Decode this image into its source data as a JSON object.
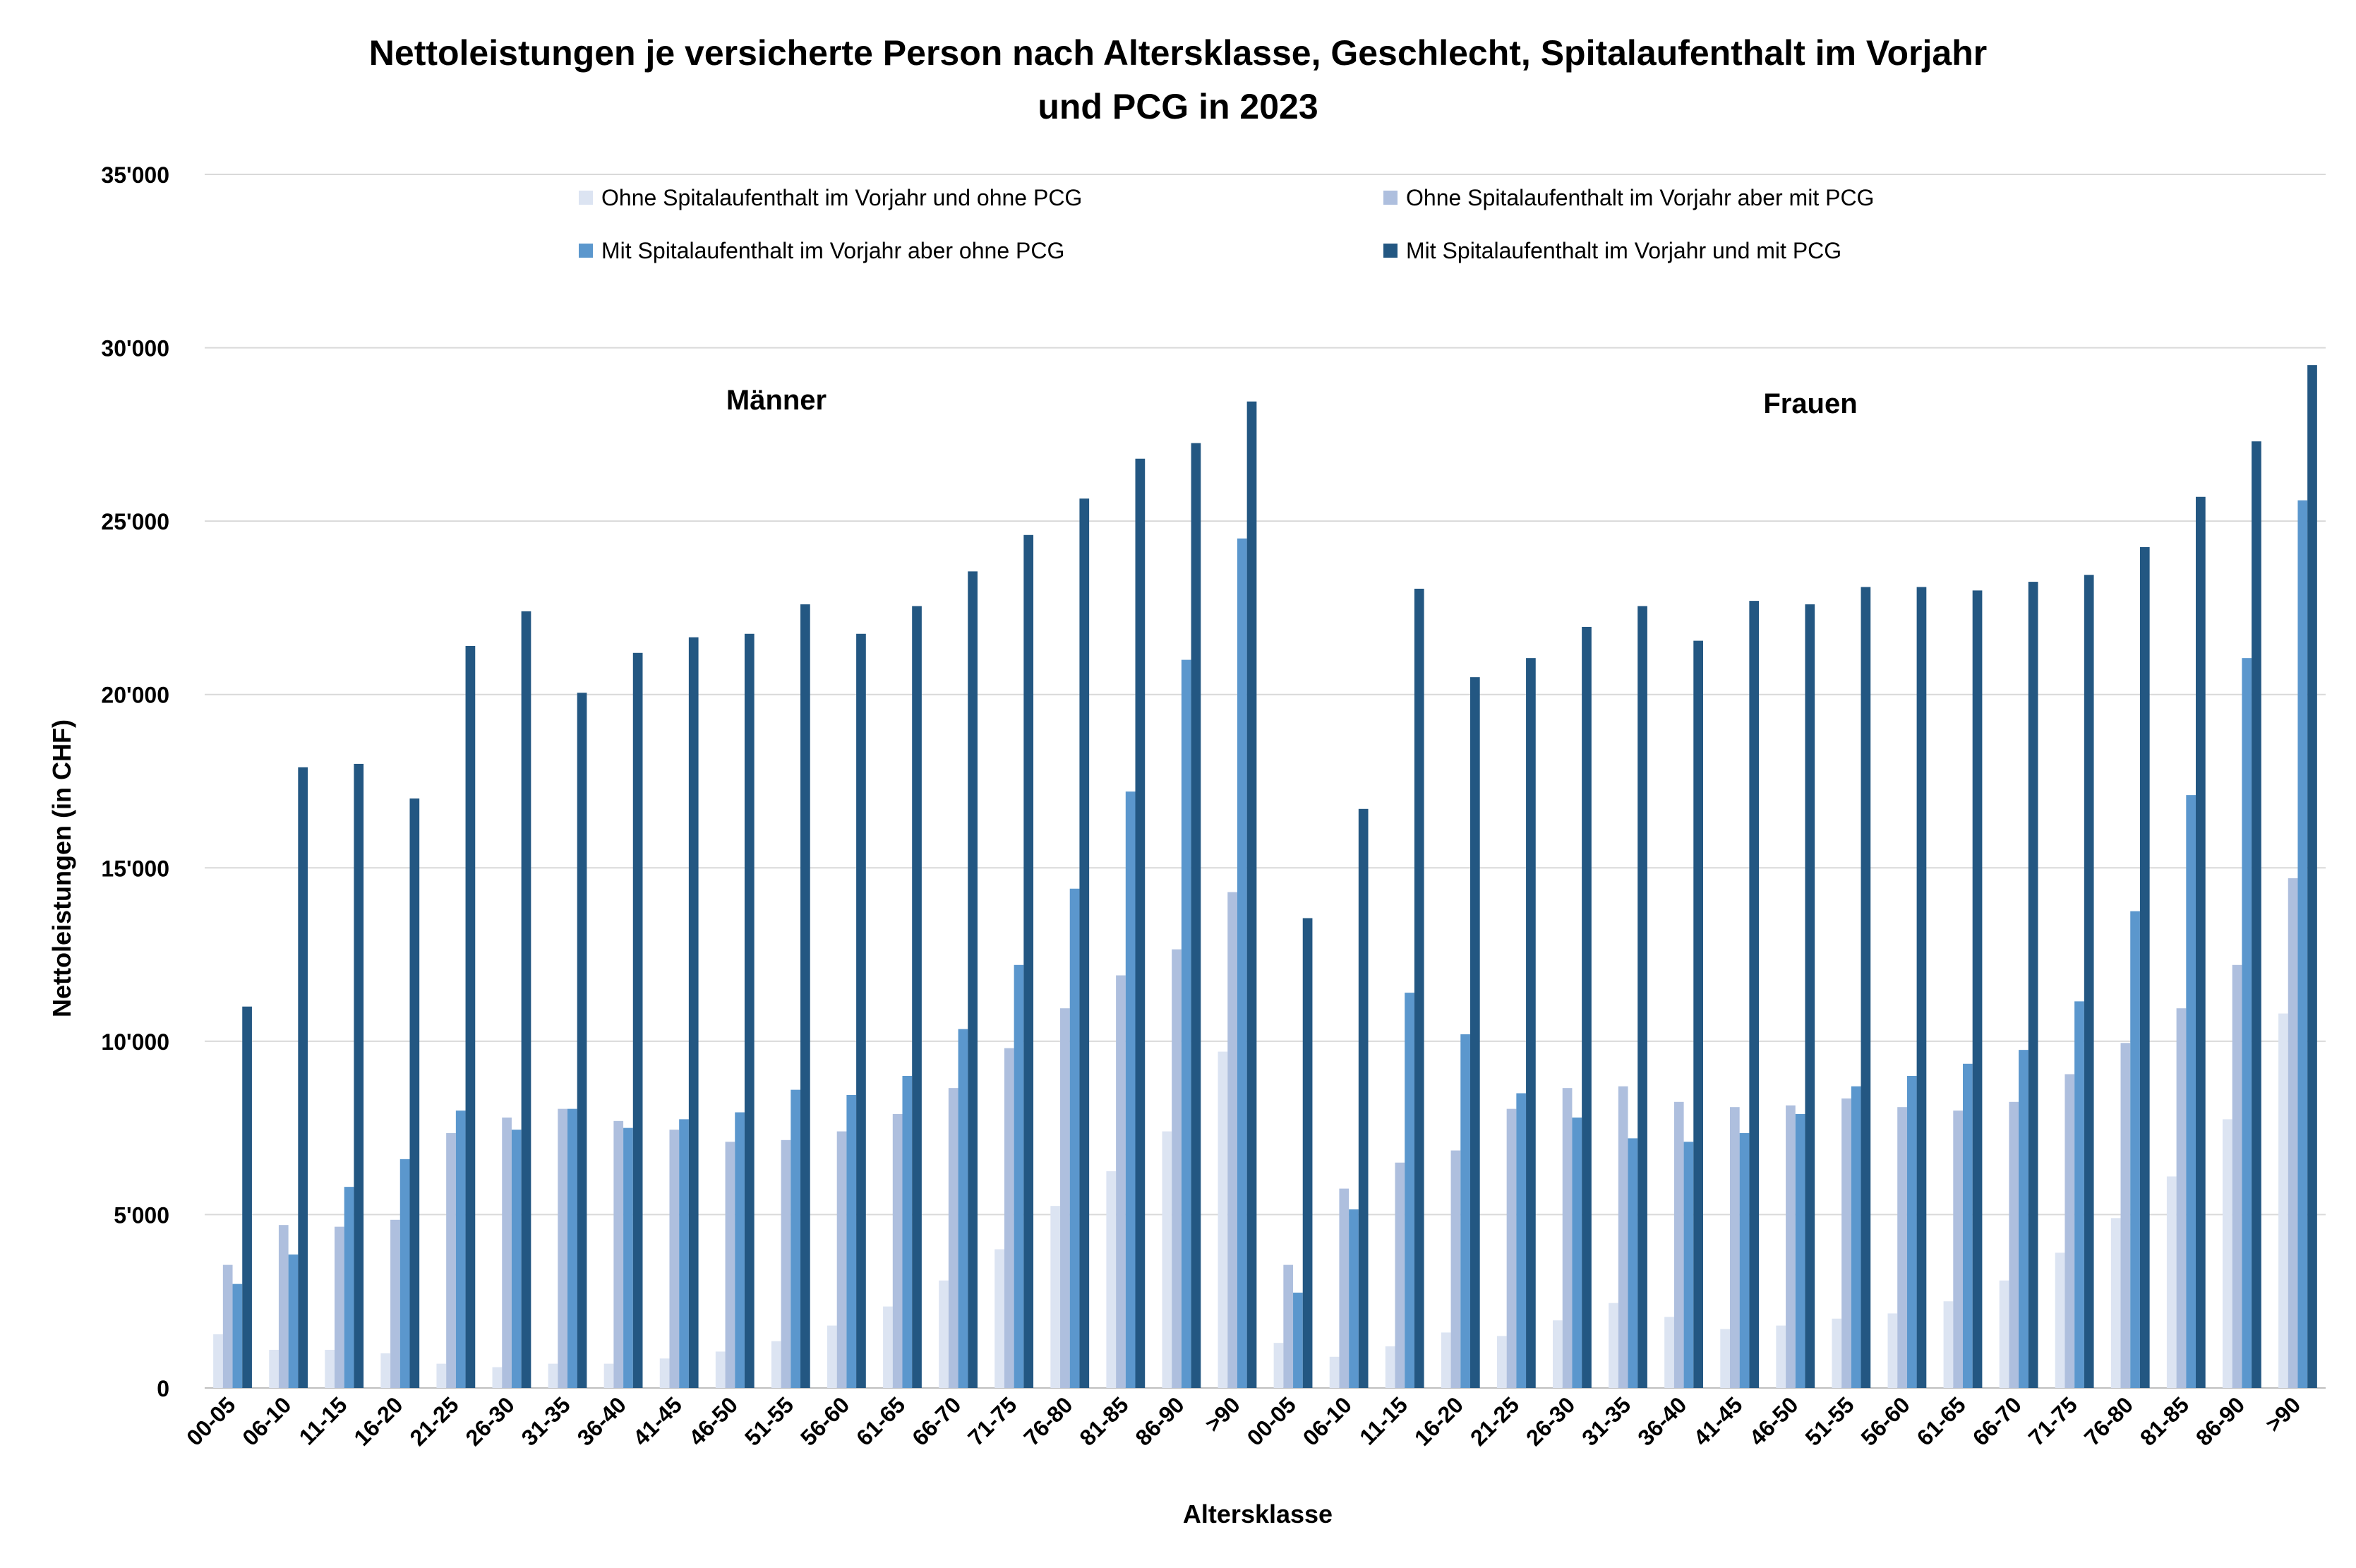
{
  "chart_data": {
    "type": "bar",
    "title": "Nettoleistungen je versicherte Person nach Altersklasse, Geschlecht, Spitalaufenthalt im Vorjahr",
    "title_line2": "und PCG in 2023",
    "xlabel": "Altersklasse",
    "ylabel": "Nettoleistungen (in CHF)",
    "ylim": [
      0,
      35000
    ],
    "yticks": [
      0,
      5000,
      10000,
      15000,
      20000,
      25000,
      30000,
      35000
    ],
    "ytick_labels": [
      "0",
      "5'000",
      "10'000",
      "15'000",
      "20'000",
      "25'000",
      "30'000",
      "35'000"
    ],
    "grid": true,
    "legend_position": "top",
    "group_labels": [
      "Männer",
      "Frauen"
    ],
    "categories": [
      "00-05",
      "06-10",
      "11-15",
      "16-20",
      "21-25",
      "26-30",
      "31-35",
      "36-40",
      "41-45",
      "46-50",
      "51-55",
      "56-60",
      "61-65",
      "66-70",
      "71-75",
      "76-80",
      "81-85",
      "86-90",
      ">90",
      "00-05",
      "06-10",
      "11-15",
      "16-20",
      "21-25",
      "26-30",
      "31-35",
      "36-40",
      "41-45",
      "46-50",
      "51-55",
      "56-60",
      "61-65",
      "66-70",
      "71-75",
      "76-80",
      "81-85",
      "86-90",
      ">90"
    ],
    "series": [
      {
        "name": "Ohne Spitalaufenthalt im Vorjahr und ohne PCG",
        "color": "#dce4f2",
        "values": [
          1550,
          1100,
          1100,
          1000,
          700,
          600,
          700,
          700,
          850,
          1050,
          1350,
          1800,
          2350,
          3100,
          4000,
          5250,
          6250,
          7400,
          9700,
          1300,
          900,
          1200,
          1600,
          1500,
          1950,
          2450,
          2050,
          1700,
          1800,
          2000,
          2150,
          2500,
          3100,
          3900,
          4900,
          6100,
          7750,
          10800
        ]
      },
      {
        "name": "Ohne Spitalaufenthalt im Vorjahr aber mit PCG",
        "color": "#aebfde",
        "values": [
          3550,
          4700,
          4650,
          4850,
          7350,
          7800,
          8050,
          7700,
          7450,
          7100,
          7150,
          7400,
          7900,
          8650,
          9800,
          10950,
          11900,
          12650,
          14300,
          3550,
          5750,
          6500,
          6850,
          8050,
          8650,
          8700,
          8250,
          8100,
          8150,
          8350,
          8100,
          8000,
          8250,
          9050,
          9950,
          10950,
          12200,
          14700
        ]
      },
      {
        "name": "Mit Spitalaufenthalt im Vorjahr aber ohne PCG",
        "color": "#5b97cd",
        "values": [
          3000,
          3850,
          5800,
          6600,
          8000,
          7450,
          8050,
          7500,
          7750,
          7950,
          8600,
          8450,
          9000,
          10350,
          12200,
          14400,
          17200,
          21000,
          24500,
          2750,
          5150,
          11400,
          10200,
          8500,
          7800,
          7200,
          7100,
          7350,
          7900,
          8700,
          9000,
          9350,
          9750,
          11150,
          13750,
          17100,
          21050,
          25600
        ]
      },
      {
        "name": "Mit Spitalaufenthalt im Vorjahr und mit PCG",
        "color": "#235782",
        "values": [
          11000,
          17900,
          18000,
          17000,
          21400,
          22400,
          20050,
          21200,
          21650,
          21750,
          22600,
          21750,
          22550,
          23550,
          24600,
          25650,
          26800,
          27250,
          28450,
          13550,
          16700,
          23050,
          20500,
          21050,
          21950,
          22550,
          21550,
          22700,
          22600,
          23100,
          23100,
          23000,
          23250,
          23450,
          24250,
          25700,
          27300,
          29500
        ]
      }
    ]
  }
}
